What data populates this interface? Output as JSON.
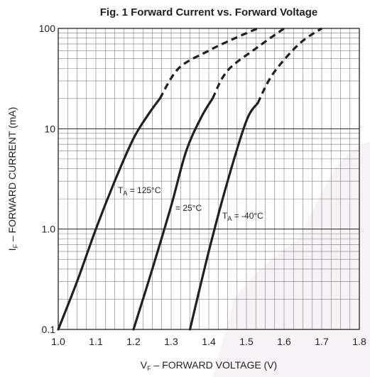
{
  "chart_data": {
    "type": "line",
    "title": "Fig. 1 Forward Current vs. Forward Voltage",
    "xlabel": {
      "main": "V",
      "sub": "F",
      "rest": " – FORWARD VOLTAGE (V)"
    },
    "ylabel": {
      "main": "I",
      "sub": "F",
      "rest": " – FORWARD CURRENT (mA)"
    },
    "xlim": [
      1.0,
      1.8
    ],
    "ylim": [
      0.1,
      100
    ],
    "yscale": "log",
    "grid": true,
    "xticks": [
      "1.0",
      "1.1",
      "1.2",
      "1.3",
      "1.4",
      "1.5",
      "1.6",
      "1.7",
      "1.8"
    ],
    "yticks": [
      {
        "value": 0.1,
        "label": "0.1"
      },
      {
        "value": 1,
        "label": "1.0"
      },
      {
        "value": 10,
        "label": "10"
      },
      {
        "value": 100,
        "label": "100"
      }
    ],
    "series": [
      {
        "solid": [
          [
            1.0,
            0.1
          ],
          [
            1.05,
            0.3
          ],
          [
            1.1,
            1.0
          ],
          [
            1.15,
            3.0
          ],
          [
            1.2,
            8.0
          ],
          [
            1.24,
            14.0
          ],
          [
            1.27,
            20.0
          ]
        ],
        "dashed": [
          [
            1.27,
            20.0
          ],
          [
            1.32,
            40.0
          ],
          [
            1.4,
            60.0
          ],
          [
            1.47,
            80.0
          ],
          [
            1.53,
            100.0
          ]
        ]
      },
      {
        "solid": [
          [
            1.2,
            0.1
          ],
          [
            1.25,
            0.4
          ],
          [
            1.3,
            1.7
          ],
          [
            1.34,
            6.0
          ],
          [
            1.38,
            13.0
          ],
          [
            1.41,
            20.0
          ]
        ],
        "dashed": [
          [
            1.41,
            20.0
          ],
          [
            1.45,
            38.0
          ],
          [
            1.53,
            65.0
          ],
          [
            1.6,
            100.0
          ]
        ]
      },
      {
        "solid": [
          [
            1.35,
            0.1
          ],
          [
            1.4,
            0.6
          ],
          [
            1.45,
            3.0
          ],
          [
            1.5,
            12.0
          ],
          [
            1.53,
            18.0
          ]
        ],
        "dashed": [
          [
            1.53,
            18.0
          ],
          [
            1.57,
            35.0
          ],
          [
            1.64,
            70.0
          ],
          [
            1.7,
            100.0
          ]
        ]
      }
    ],
    "annotations": [
      {
        "main": "T",
        "sub": "A",
        "rest": " = 125°C"
      },
      {
        "main": "",
        "sub": "",
        "rest": "= 25°C"
      },
      {
        "main": "T",
        "sub": "A",
        "rest": " = -40°C"
      }
    ]
  }
}
